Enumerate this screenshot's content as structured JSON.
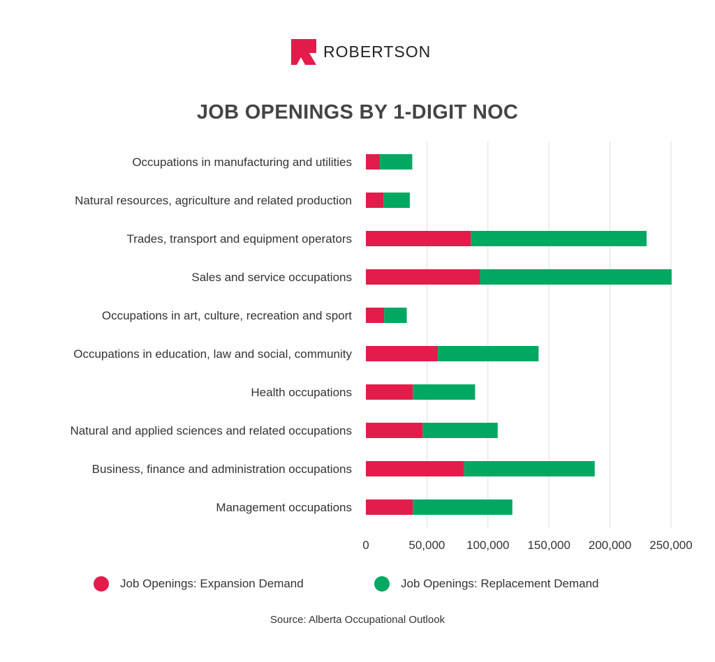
{
  "brand": {
    "name": "ROBERTSON",
    "color": "#e31c4c"
  },
  "chart_data": {
    "type": "bar",
    "orientation": "horizontal",
    "stacked": true,
    "title": "JOB OPENINGS BY 1-DIGIT NOC",
    "categories": [
      "Occupations in manufacturing and utilities",
      "Natural resources, agriculture and related production",
      "Trades, transport and equipment operators",
      "Sales and service occupations",
      "Occupations in art, culture, recreation and sport",
      "Occupations in education, law and social, community",
      "Health occupations",
      "Natural and applied sciences and related occupations",
      "Business, finance and administration occupations",
      "Management occupations"
    ],
    "series": [
      {
        "name": "Job Openings: Expansion Demand",
        "color": "#e31c4c",
        "values": [
          11500,
          14500,
          86000,
          93500,
          15000,
          59000,
          38500,
          46500,
          80500,
          38500
        ]
      },
      {
        "name": "Job Openings: Replacement Demand",
        "color": "#00a862",
        "values": [
          26500,
          21500,
          144000,
          157000,
          18500,
          82500,
          51000,
          61500,
          107000,
          81500
        ]
      }
    ],
    "xlim": [
      0,
      250000
    ],
    "x_ticks": [
      0,
      50000,
      100000,
      150000,
      200000,
      250000
    ],
    "x_tick_labels": [
      "0",
      "50,000",
      "100,000",
      "150,000",
      "200,000",
      "250,000"
    ],
    "grid": "vertical",
    "legend_position": "bottom"
  },
  "source": "Source: Alberta Occupational Outlook"
}
